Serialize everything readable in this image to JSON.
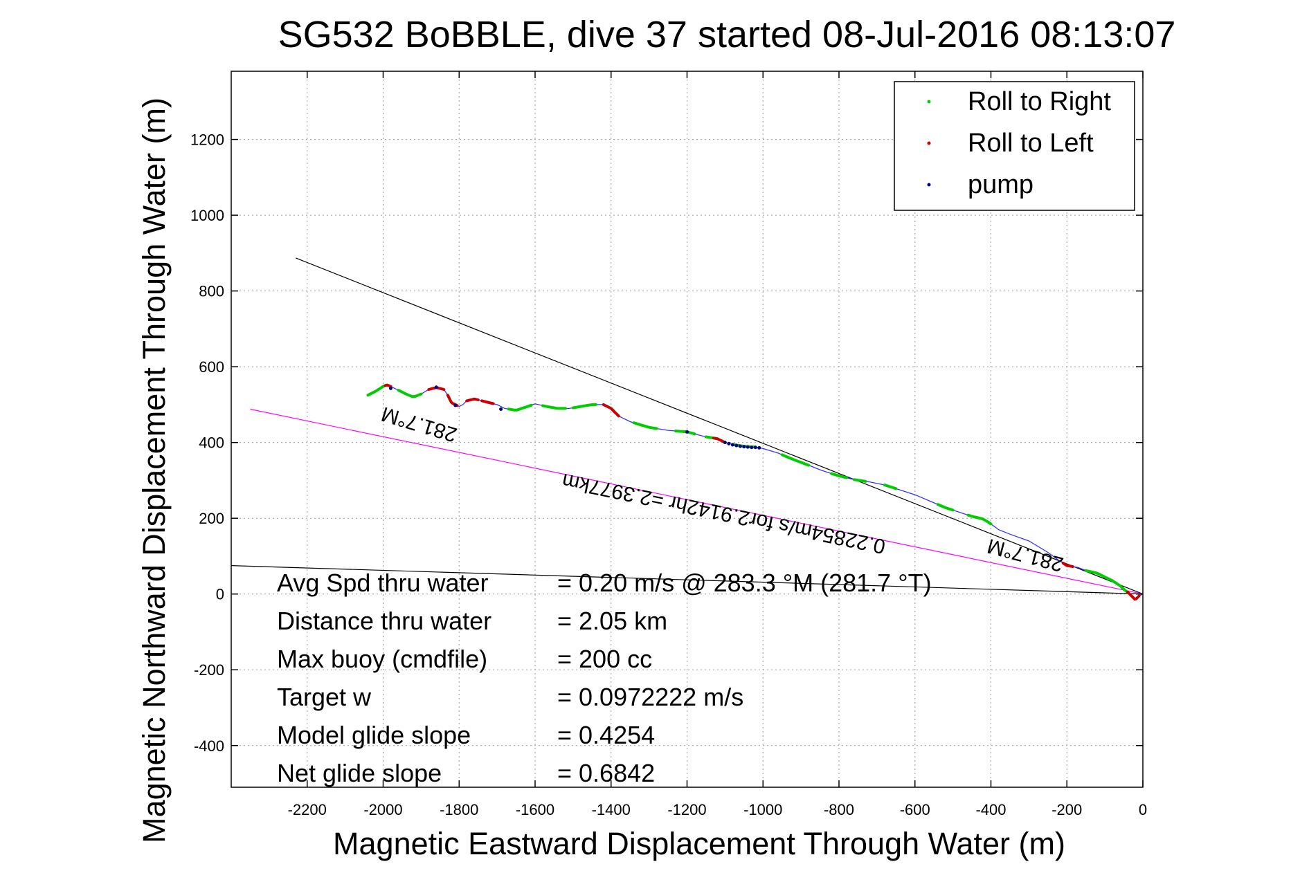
{
  "chart_data": {
    "type": "line",
    "title": "SG532 BoBBLE, dive 37 started 08-Jul-2016 08:13:07",
    "xlabel": "Magnetic Eastward Displacement Through Water (m)",
    "ylabel": "Magnetic Northward Displacement Through Water (m)",
    "xlim": [
      -2400,
      0
    ],
    "ylim": [
      -510,
      1380
    ],
    "xticks": [
      -2200,
      -2000,
      -1800,
      -1600,
      -1400,
      -1200,
      -1000,
      -800,
      -600,
      -400,
      -200,
      0
    ],
    "yticks": [
      -400,
      -200,
      0,
      200,
      400,
      600,
      800,
      1000,
      1200
    ],
    "grid": true,
    "legend_position": "top-right",
    "legend": [
      {
        "label": "Roll to Right",
        "color": "#00cc00"
      },
      {
        "label": "Roll to Left",
        "color": "#cc0000"
      },
      {
        "label": "pump",
        "color": "#000080"
      }
    ],
    "track": {
      "color": "#3333ff",
      "x": [
        -2040,
        -2020,
        -2000,
        -1990,
        -1980,
        -1960,
        -1940,
        -1920,
        -1900,
        -1880,
        -1860,
        -1840,
        -1830,
        -1820,
        -1800,
        -1790,
        -1780,
        -1760,
        -1740,
        -1720,
        -1700,
        -1680,
        -1650,
        -1620,
        -1600,
        -1570,
        -1540,
        -1510,
        -1480,
        -1450,
        -1420,
        -1400,
        -1380,
        -1350,
        -1300,
        -1250,
        -1200,
        -1170,
        -1150,
        -1120,
        -1100,
        -1080,
        -1050,
        -1020,
        -1000,
        -960,
        -920,
        -880,
        -850,
        -820,
        -800,
        -760,
        -720,
        -680,
        -640,
        -600,
        -560,
        -520,
        -480,
        -450,
        -420,
        -400,
        -380,
        -350,
        -300,
        -250,
        -220,
        -200,
        -170,
        -150,
        -120,
        -100,
        -80,
        -60,
        -50,
        -40,
        -30,
        -20,
        -10,
        0
      ],
      "y": [
        525,
        535,
        548,
        552,
        548,
        538,
        528,
        520,
        528,
        540,
        545,
        540,
        525,
        505,
        495,
        500,
        510,
        515,
        510,
        505,
        500,
        490,
        485,
        495,
        502,
        495,
        490,
        490,
        495,
        500,
        500,
        490,
        470,
        455,
        440,
        432,
        428,
        420,
        415,
        410,
        400,
        395,
        390,
        388,
        384,
        372,
        355,
        340,
        328,
        318,
        312,
        302,
        296,
        288,
        275,
        262,
        245,
        228,
        215,
        205,
        198,
        185,
        170,
        158,
        140,
        110,
        88,
        75,
        70,
        62,
        55,
        45,
        35,
        22,
        12,
        5,
        -5,
        -15,
        -5,
        0
      ]
    },
    "reference_lines": [
      {
        "color": "#000000",
        "x": [
          -2230,
          0
        ],
        "y": [
          887,
          0
        ]
      },
      {
        "color": "#000000",
        "x": [
          -2400,
          0
        ],
        "y": [
          75,
          0
        ]
      },
      {
        "color": "#ff00ff",
        "x": [
          -2350,
          0
        ],
        "y": [
          488,
          0
        ]
      }
    ],
    "roll_right_segments": [
      [
        -2040,
        -1995
      ],
      [
        -1960,
        -1900
      ],
      [
        -1670,
        -1610
      ],
      [
        -1580,
        -1520
      ],
      [
        -1500,
        -1440
      ],
      [
        -1340,
        -1280
      ],
      [
        -1230,
        -1180
      ],
      [
        -1150,
        -1120
      ],
      [
        -1080,
        -1020
      ],
      [
        -950,
        -880
      ],
      [
        -820,
        -780
      ],
      [
        -760,
        -730
      ],
      [
        -680,
        -650
      ],
      [
        -540,
        -500
      ],
      [
        -460,
        -400
      ],
      [
        -150,
        -80
      ],
      [
        -80,
        -40
      ]
    ],
    "roll_left_segments": [
      [
        -1995,
        -1980
      ],
      [
        -1880,
        -1840
      ],
      [
        -1830,
        -1805
      ],
      [
        -1780,
        -1750
      ],
      [
        -1740,
        -1710
      ],
      [
        -1420,
        -1380
      ],
      [
        -1130,
        -1100
      ],
      [
        -210,
        -185
      ],
      [
        -40,
        -10
      ]
    ],
    "pump_points": [
      [
        -1980,
        543
      ],
      [
        -1860,
        546
      ],
      [
        -1810,
        498
      ],
      [
        -1690,
        488
      ],
      [
        -1200,
        428
      ],
      [
        -1100,
        400
      ],
      [
        -1090,
        397
      ],
      [
        -1080,
        394
      ],
      [
        -1070,
        392
      ],
      [
        -1060,
        390
      ],
      [
        -1050,
        389
      ],
      [
        -1040,
        388
      ],
      [
        -1030,
        387
      ],
      [
        -1020,
        387
      ],
      [
        -1010,
        386
      ]
    ],
    "annotations": [
      {
        "text": "281.7°M",
        "x": -1900,
        "y": 465,
        "rotation": 196.7
      },
      {
        "text": "281.7°M",
        "x": -305,
        "y": 120,
        "rotation": 194.7
      },
      {
        "text": "0.22854m/s for2.9142hr =2.3977km",
        "x": -1100,
        "y": 230,
        "rotation": 191.7
      }
    ],
    "stats": [
      {
        "label": "Avg Spd thru water",
        "value": "=  0.20 m/s @ 283.3 °M (281.7 °T)"
      },
      {
        "label": "Distance thru water",
        "value": "=  2.05 km"
      },
      {
        "label": "Max buoy (cmdfile)",
        "value": "= 200 cc"
      },
      {
        "label": "Target w",
        "value": "= 0.0972222 m/s"
      },
      {
        "label": "Model glide slope",
        "value": "= 0.4254"
      },
      {
        "label": "Net glide slope",
        "value": "= 0.6842"
      }
    ]
  }
}
